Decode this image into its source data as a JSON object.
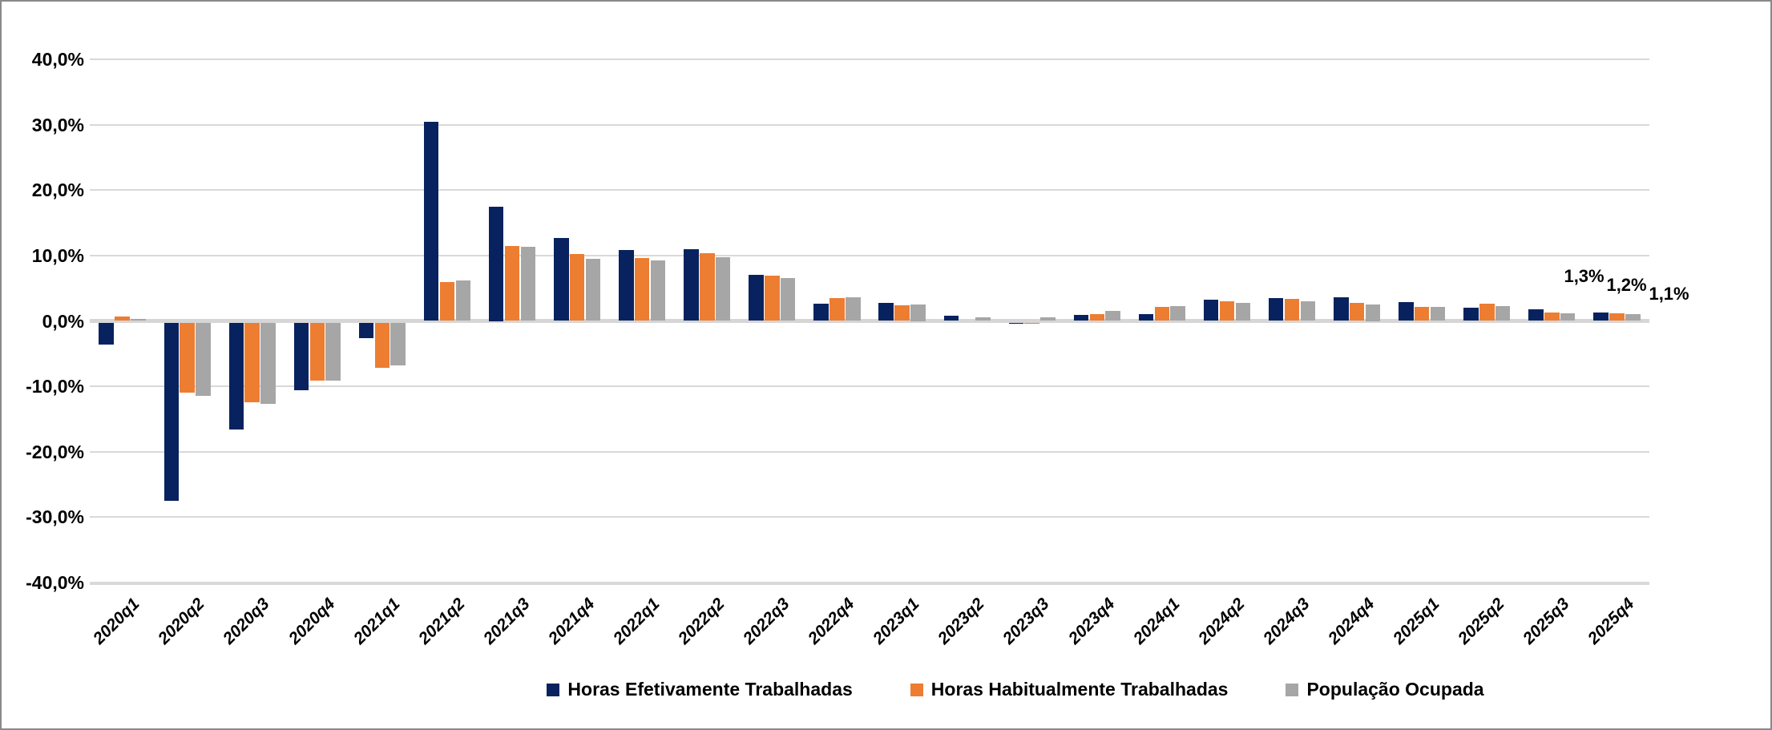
{
  "chart_data": {
    "type": "bar",
    "title": "",
    "xlabel": "",
    "ylabel": "",
    "grid": true,
    "legend_position": "bottom",
    "categories": [
      "2020q1",
      "2020q2",
      "2020q3",
      "2020q4",
      "2021q1",
      "2021q2",
      "2021q3",
      "2021q4",
      "2022q1",
      "2022q2",
      "2022q3",
      "2022q4",
      "2023q1",
      "2023q2",
      "2023q3",
      "2023q4",
      "2024q1",
      "2024q2",
      "2024q3",
      "2024q4",
      "2025q1",
      "2025q2",
      "2025q3",
      "2025q4"
    ],
    "series": [
      {
        "name": "Horas Efetivamente Trabalhadas",
        "color": "#07225e",
        "values": [
          -3.4,
          -27.3,
          -16.4,
          -10.3,
          -2.4,
          30.4,
          17.5,
          12.7,
          10.8,
          11.0,
          7.0,
          2.6,
          2.7,
          0.8,
          -0.2,
          0.9,
          1.1,
          3.3,
          3.5,
          3.6,
          2.9,
          2.0,
          1.8,
          1.3
        ]
      },
      {
        "name": "Horas Habitualmente Trabalhadas",
        "color": "#ED7D31",
        "values": [
          0.7,
          -10.7,
          -12.2,
          -8.9,
          -6.9,
          6.0,
          11.4,
          10.2,
          9.6,
          10.4,
          6.9,
          3.5,
          2.4,
          0.0,
          -0.2,
          1.0,
          2.2,
          3.0,
          3.4,
          2.8,
          2.2,
          2.6,
          1.3,
          1.2
        ]
      },
      {
        "name": "População Ocupada",
        "color": "#A6A6A6",
        "values": [
          0.3,
          -11.2,
          -12.4,
          -8.9,
          -6.6,
          6.2,
          11.3,
          9.5,
          9.2,
          9.8,
          6.6,
          3.6,
          2.5,
          0.5,
          0.5,
          1.5,
          2.3,
          2.7,
          3.0,
          2.5,
          2.2,
          2.3,
          1.2,
          1.1
        ]
      }
    ],
    "y_axis": {
      "min": -40,
      "max": 40,
      "step": 10,
      "tick_values": [
        40,
        30,
        20,
        10,
        0,
        -10,
        -20,
        -30,
        -40
      ],
      "tick_labels": [
        "40,0%",
        "30,0%",
        "20,0%",
        "10,0%",
        "0,0%",
        "-10,0%",
        "-20,0%",
        "-30,0%",
        "-40,0%"
      ]
    },
    "data_labels": [
      {
        "series_index": 0,
        "category": "2025q4",
        "text": "1,3%"
      },
      {
        "series_index": 1,
        "category": "2025q4",
        "text": "1,2%"
      },
      {
        "series_index": 2,
        "category": "2025q4",
        "text": "1,1%"
      }
    ]
  },
  "colors": {
    "gridline": "#d9d9d9",
    "frame_border": "#898989",
    "background": "#ffffff"
  }
}
